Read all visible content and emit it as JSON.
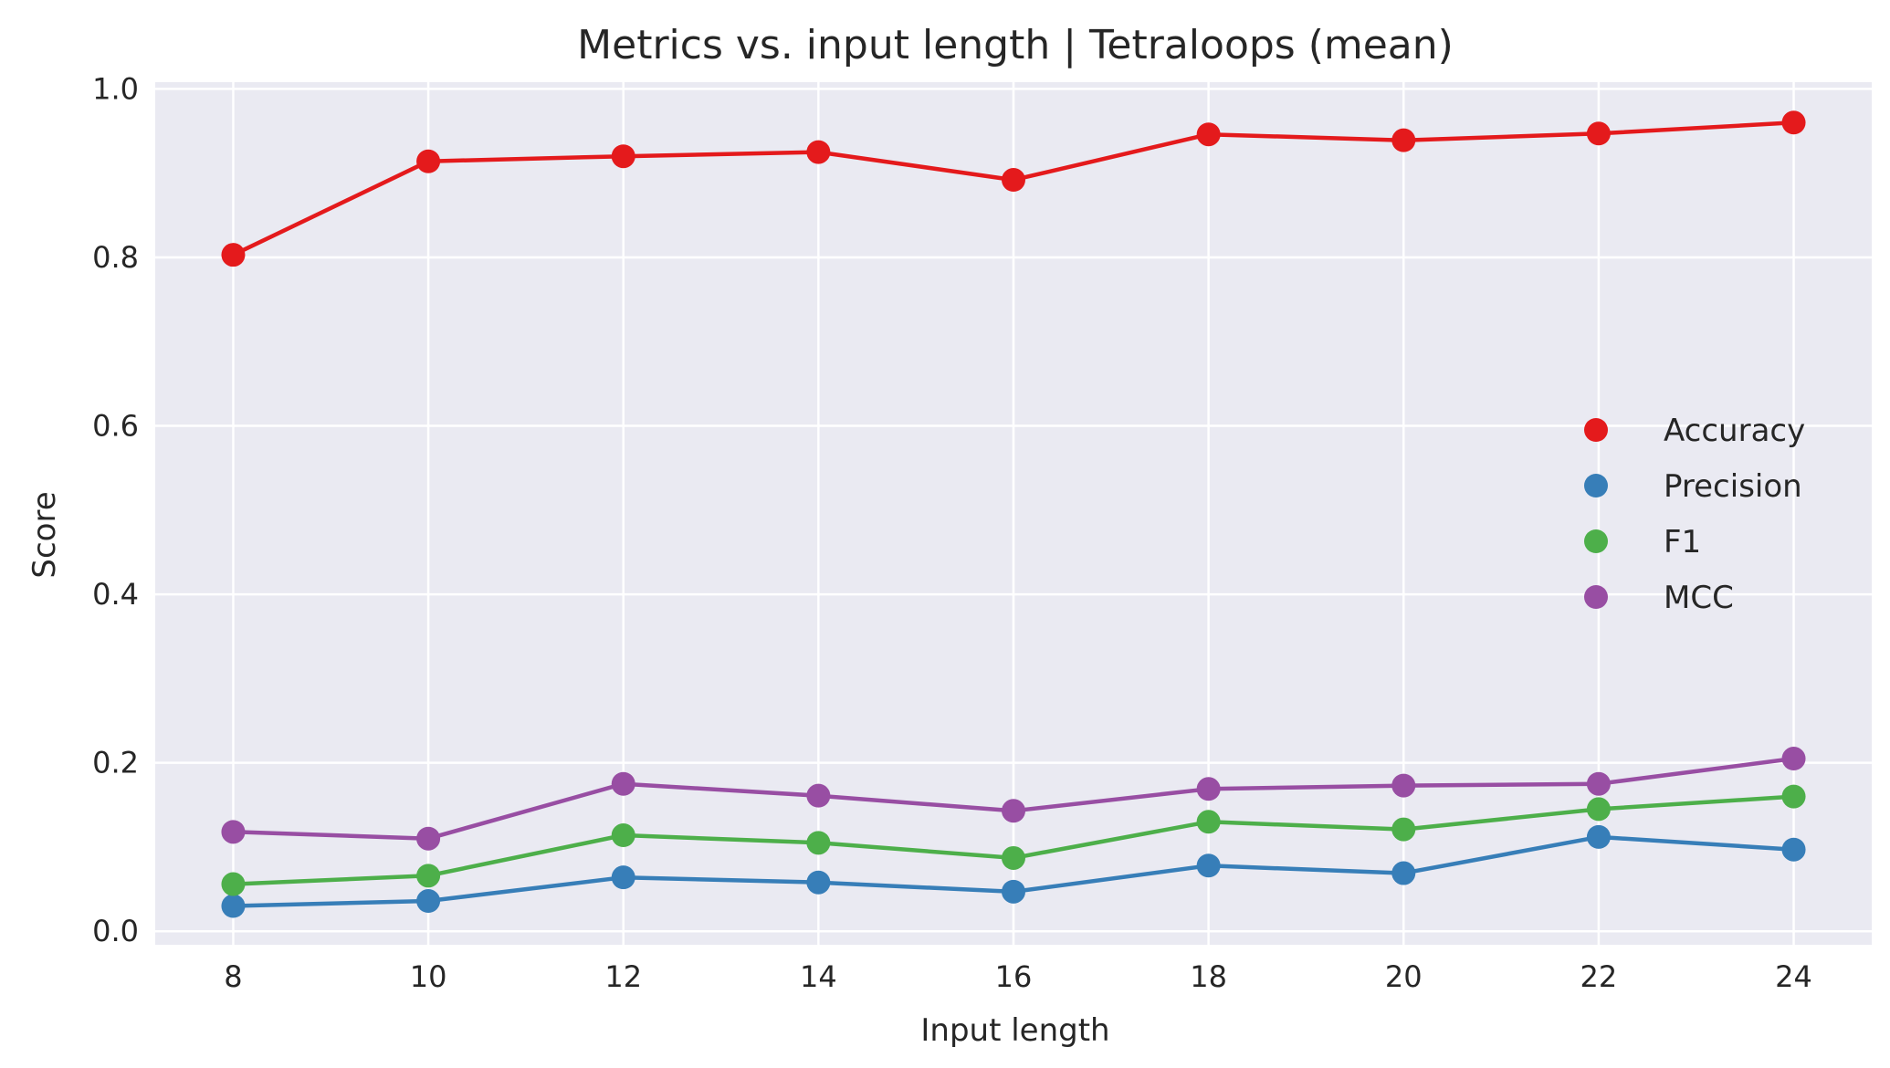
{
  "chart_data": {
    "type": "line",
    "title": "Metrics vs. input length | Tetraloops (mean)",
    "xlabel": "Input length",
    "ylabel": "Score",
    "x": [
      8,
      10,
      12,
      14,
      16,
      18,
      20,
      22,
      24
    ],
    "xticks": [
      "8",
      "10",
      "12",
      "14",
      "16",
      "18",
      "20",
      "22",
      "24"
    ],
    "xlim": [
      7.2,
      24.8
    ],
    "yticks": [
      "0.0",
      "0.2",
      "0.4",
      "0.6",
      "0.8",
      "1.0"
    ],
    "ylim": [
      -0.016,
      1.008
    ],
    "grid": true,
    "legend_position": "center-right",
    "series": [
      {
        "name": "Accuracy",
        "color": "#e41a1c",
        "values": [
          0.803,
          0.914,
          0.92,
          0.925,
          0.892,
          0.946,
          0.939,
          0.947,
          0.96
        ]
      },
      {
        "name": "Precision",
        "color": "#377eb8",
        "values": [
          0.03,
          0.036,
          0.064,
          0.058,
          0.047,
          0.078,
          0.069,
          0.112,
          0.097
        ]
      },
      {
        "name": "F1",
        "color": "#4daf4a",
        "values": [
          0.056,
          0.066,
          0.114,
          0.105,
          0.087,
          0.13,
          0.121,
          0.145,
          0.16
        ]
      },
      {
        "name": "MCC",
        "color": "#984ea3",
        "values": [
          0.118,
          0.11,
          0.175,
          0.161,
          0.143,
          0.169,
          0.173,
          0.175,
          0.205
        ]
      }
    ]
  }
}
